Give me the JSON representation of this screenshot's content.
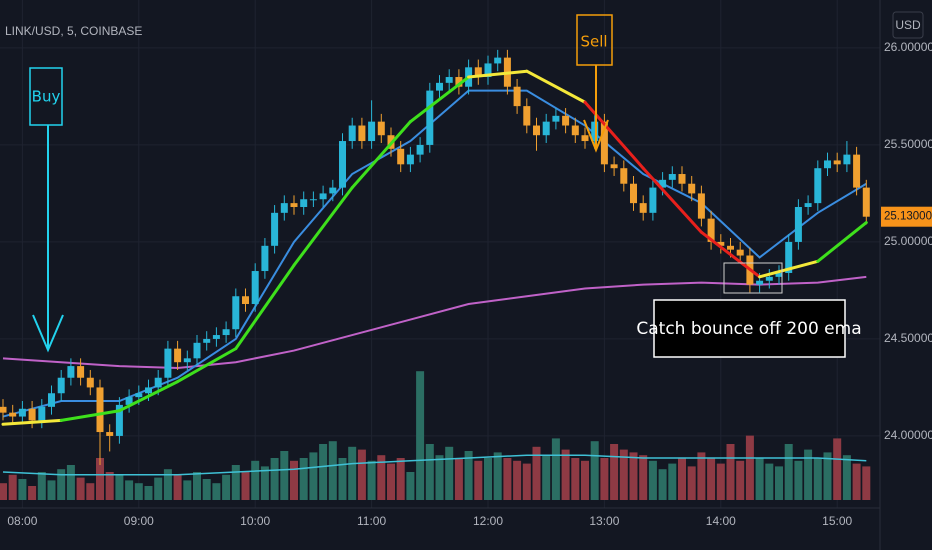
{
  "chart_data": {
    "type": "candlestick",
    "symbol": "LINK/USD, 5, COINBASE",
    "currency_button": "USD",
    "x": [
      "07:50",
      "07:55",
      "08:00",
      "08:05",
      "08:10",
      "08:15",
      "08:20",
      "08:25",
      "08:30",
      "08:35",
      "08:40",
      "08:45",
      "08:50",
      "08:55",
      "09:00",
      "09:05",
      "09:10",
      "09:15",
      "09:20",
      "09:25",
      "09:30",
      "09:35",
      "09:40",
      "09:45",
      "09:50",
      "09:55",
      "10:00",
      "10:05",
      "10:10",
      "10:15",
      "10:20",
      "10:25",
      "10:30",
      "10:35",
      "10:40",
      "10:45",
      "10:50",
      "10:55",
      "11:00",
      "11:05",
      "11:10",
      "11:15",
      "11:20",
      "11:25",
      "11:30",
      "11:35",
      "11:40",
      "11:45",
      "11:50",
      "11:55",
      "12:00",
      "12:05",
      "12:10",
      "12:15",
      "12:20",
      "12:25",
      "12:30",
      "12:35",
      "12:40",
      "12:45",
      "12:50",
      "12:55",
      "13:00",
      "13:05",
      "13:10",
      "13:15",
      "13:20",
      "13:25",
      "13:30",
      "13:35",
      "13:40",
      "13:45",
      "13:50",
      "13:55",
      "14:00",
      "14:05",
      "14:10",
      "14:15",
      "14:20",
      "14:25",
      "14:30",
      "14:35",
      "14:40",
      "14:45",
      "14:50",
      "14:55",
      "15:00",
      "15:05",
      "15:10",
      "15:15"
    ],
    "open": [
      24.15,
      24.12,
      24.1,
      24.14,
      24.08,
      24.15,
      24.22,
      24.3,
      24.36,
      24.3,
      24.25,
      24.02,
      24.0,
      24.16,
      24.2,
      24.22,
      24.25,
      24.3,
      24.45,
      24.38,
      24.4,
      24.48,
      24.5,
      24.52,
      24.55,
      24.72,
      24.68,
      24.85,
      24.98,
      25.15,
      25.2,
      25.18,
      25.22,
      25.22,
      25.25,
      25.28,
      25.52,
      25.6,
      25.52,
      25.62,
      25.55,
      25.48,
      25.4,
      25.45,
      25.5,
      25.78,
      25.82,
      25.85,
      25.8,
      25.9,
      25.85,
      25.92,
      25.95,
      25.8,
      25.7,
      25.6,
      25.55,
      25.62,
      25.65,
      25.6,
      25.55,
      25.52,
      25.62,
      25.4,
      25.38,
      25.3,
      25.2,
      25.15,
      25.28,
      25.32,
      25.35,
      25.3,
      25.25,
      25.12,
      25.0,
      24.98,
      24.96,
      24.93,
      24.78,
      24.8,
      24.82,
      24.84,
      25.0,
      25.18,
      25.2,
      25.38,
      25.42,
      25.4,
      25.45,
      25.28
    ],
    "high": [
      24.19,
      24.16,
      24.18,
      24.18,
      24.19,
      24.26,
      24.34,
      24.4,
      24.4,
      24.34,
      24.29,
      24.06,
      24.2,
      24.24,
      24.26,
      24.29,
      24.34,
      24.49,
      24.49,
      24.44,
      24.52,
      24.54,
      24.56,
      24.59,
      24.76,
      24.76,
      24.89,
      25.02,
      25.19,
      25.24,
      25.24,
      25.26,
      25.26,
      25.29,
      25.32,
      25.56,
      25.64,
      25.64,
      25.73,
      25.66,
      25.59,
      25.52,
      25.49,
      25.54,
      25.82,
      25.86,
      25.89,
      25.89,
      25.94,
      25.94,
      25.96,
      25.99,
      25.99,
      25.84,
      25.74,
      25.64,
      25.66,
      25.69,
      25.69,
      25.64,
      25.59,
      25.66,
      25.66,
      25.44,
      25.42,
      25.34,
      25.24,
      25.32,
      25.36,
      25.39,
      25.39,
      25.34,
      25.29,
      25.16,
      25.04,
      25.02,
      25.0,
      24.97,
      24.84,
      24.86,
      24.88,
      25.04,
      25.22,
      25.24,
      25.42,
      25.46,
      25.46,
      25.52,
      25.49,
      25.32
    ],
    "low": [
      24.08,
      24.06,
      24.06,
      24.04,
      24.04,
      24.11,
      24.18,
      24.26,
      24.26,
      24.21,
      23.85,
      23.92,
      23.96,
      24.12,
      24.16,
      24.18,
      24.21,
      24.26,
      24.34,
      24.34,
      24.36,
      24.44,
      24.46,
      24.48,
      24.51,
      24.64,
      24.64,
      24.81,
      24.94,
      25.11,
      25.14,
      25.14,
      25.18,
      25.18,
      25.21,
      25.24,
      25.48,
      25.48,
      25.48,
      25.51,
      25.44,
      25.36,
      25.36,
      25.41,
      25.46,
      25.74,
      25.78,
      25.76,
      25.76,
      25.81,
      25.81,
      25.88,
      25.76,
      25.66,
      25.56,
      25.47,
      25.51,
      25.58,
      25.56,
      25.51,
      25.48,
      25.48,
      25.36,
      25.34,
      25.26,
      25.16,
      25.11,
      25.11,
      25.24,
      25.28,
      25.26,
      25.21,
      25.08,
      24.96,
      24.94,
      24.92,
      24.89,
      24.74,
      24.74,
      24.76,
      24.78,
      24.8,
      24.96,
      25.14,
      25.16,
      25.34,
      25.36,
      25.36,
      25.24,
      25.09
    ],
    "close": [
      24.12,
      24.1,
      24.14,
      24.08,
      24.15,
      24.22,
      24.3,
      24.36,
      24.3,
      24.25,
      24.02,
      24.0,
      24.16,
      24.2,
      24.22,
      24.25,
      24.3,
      24.45,
      24.38,
      24.4,
      24.48,
      24.5,
      24.52,
      24.55,
      24.72,
      24.68,
      24.85,
      24.98,
      25.15,
      25.2,
      25.18,
      25.22,
      25.22,
      25.25,
      25.28,
      25.52,
      25.6,
      25.52,
      25.62,
      25.55,
      25.48,
      25.4,
      25.45,
      25.5,
      25.78,
      25.82,
      25.85,
      25.8,
      25.9,
      25.85,
      25.92,
      25.95,
      25.8,
      25.7,
      25.6,
      25.55,
      25.62,
      25.65,
      25.6,
      25.55,
      25.52,
      25.62,
      25.4,
      25.38,
      25.3,
      25.2,
      25.15,
      25.28,
      25.32,
      25.35,
      25.3,
      25.25,
      25.12,
      25.0,
      24.98,
      24.96,
      24.93,
      24.78,
      24.8,
      24.82,
      24.84,
      25.0,
      25.18,
      25.2,
      25.38,
      25.42,
      25.4,
      25.45,
      25.28,
      25.13
    ],
    "up_color": "#29b6d8",
    "down_color": "#f0a030",
    "ylim": [
      23.644,
      26.247
    ],
    "yticks": [
      {
        "value": 24,
        "label": "24.00000"
      },
      {
        "value": 24.5,
        "label": "24.50000"
      },
      {
        "value": 25,
        "label": "25.00000"
      },
      {
        "value": 25.5,
        "label": "25.50000"
      },
      {
        "value": 26,
        "label": "26.00000"
      }
    ],
    "xticks": [
      "08:00",
      "09:00",
      "10:00",
      "11:00",
      "12:00",
      "13:00",
      "14:00",
      "15:00"
    ],
    "grid": true,
    "volume": {
      "values": [
        12,
        18,
        15,
        10,
        20,
        14,
        22,
        25,
        16,
        12,
        30,
        20,
        18,
        14,
        12,
        10,
        16,
        22,
        18,
        14,
        20,
        15,
        12,
        18,
        25,
        20,
        28,
        24,
        30,
        35,
        28,
        30,
        34,
        40,
        42,
        30,
        38,
        36,
        28,
        32,
        26,
        30,
        20,
        92,
        40,
        32,
        38,
        30,
        35,
        28,
        30,
        34,
        30,
        28,
        26,
        38,
        32,
        44,
        36,
        30,
        28,
        42,
        30,
        40,
        36,
        34,
        32,
        28,
        22,
        26,
        30,
        24,
        34,
        30,
        26,
        40,
        28,
        46,
        30,
        26,
        24,
        40,
        28,
        36,
        30,
        34,
        44,
        32,
        26,
        24
      ],
      "ylim": [
        0,
        100
      ],
      "up_color": "#2b6e63",
      "down_color": "#8e3a44"
    },
    "lines": [
      {
        "pane": "volume",
        "color": "#3fc1d6",
        "x": [
          "07:50",
          "08:20",
          "08:50",
          "09:20",
          "09:50",
          "10:20",
          "10:50",
          "11:20",
          "11:50",
          "12:20",
          "12:50",
          "13:20",
          "13:50",
          "14:20",
          "14:50",
          "15:15"
        ],
        "values": [
          20,
          18,
          18,
          18,
          20,
          22,
          26,
          28,
          30,
          32,
          32,
          30,
          30,
          30,
          30,
          28
        ]
      },
      {
        "pane": "price",
        "color": "#c062c8",
        "x": [
          "07:50",
          "08:20",
          "08:50",
          "09:20",
          "09:50",
          "10:20",
          "10:50",
          "11:20",
          "11:50",
          "12:20",
          "12:50",
          "13:20",
          "13:50",
          "14:20",
          "14:50",
          "15:15"
        ],
        "values": [
          24.4,
          24.38,
          24.36,
          24.35,
          24.38,
          24.44,
          24.52,
          24.6,
          24.68,
          24.72,
          24.76,
          24.78,
          24.79,
          24.78,
          24.79,
          24.82
        ]
      },
      {
        "pane": "price",
        "color": "#3a8de0",
        "x": [
          "07:50",
          "08:20",
          "08:50",
          "09:20",
          "09:50",
          "10:20",
          "10:50",
          "11:20",
          "11:50",
          "12:20",
          "12:50",
          "13:20",
          "13:50",
          "14:20",
          "14:50",
          "15:15"
        ],
        "values": [
          24.1,
          24.18,
          24.18,
          24.3,
          24.5,
          25.0,
          25.35,
          25.52,
          25.78,
          25.78,
          25.6,
          25.35,
          25.2,
          24.92,
          25.15,
          25.3
        ]
      },
      {
        "pane": "price",
        "colors": [
          "#f4e83a",
          "#3ee01c",
          "#3ee01c",
          "#3ee01c",
          "#3ee01c",
          "#3ee01c",
          "#3ee01c",
          "#3ee01c",
          "#f4e83a",
          "#f4e83a",
          "#e8201c",
          "#e8201c",
          "#e8201c",
          "#f4e83a",
          "#3ee01c",
          "#3ee01c"
        ],
        "x": [
          "07:50",
          "08:20",
          "08:50",
          "09:20",
          "09:50",
          "10:20",
          "10:50",
          "11:20",
          "11:50",
          "12:20",
          "12:50",
          "13:20",
          "13:50",
          "14:20",
          "14:50",
          "15:15"
        ],
        "values": [
          24.06,
          24.08,
          24.13,
          24.28,
          24.45,
          24.88,
          25.28,
          25.62,
          25.85,
          25.88,
          25.72,
          25.38,
          25.05,
          24.82,
          24.9,
          25.1
        ]
      }
    ],
    "annotations": [
      "Buy",
      "Sell",
      "Catch bounce off 200 ema"
    ],
    "last_price": {
      "value": 25.13,
      "label": "25.13000"
    }
  }
}
